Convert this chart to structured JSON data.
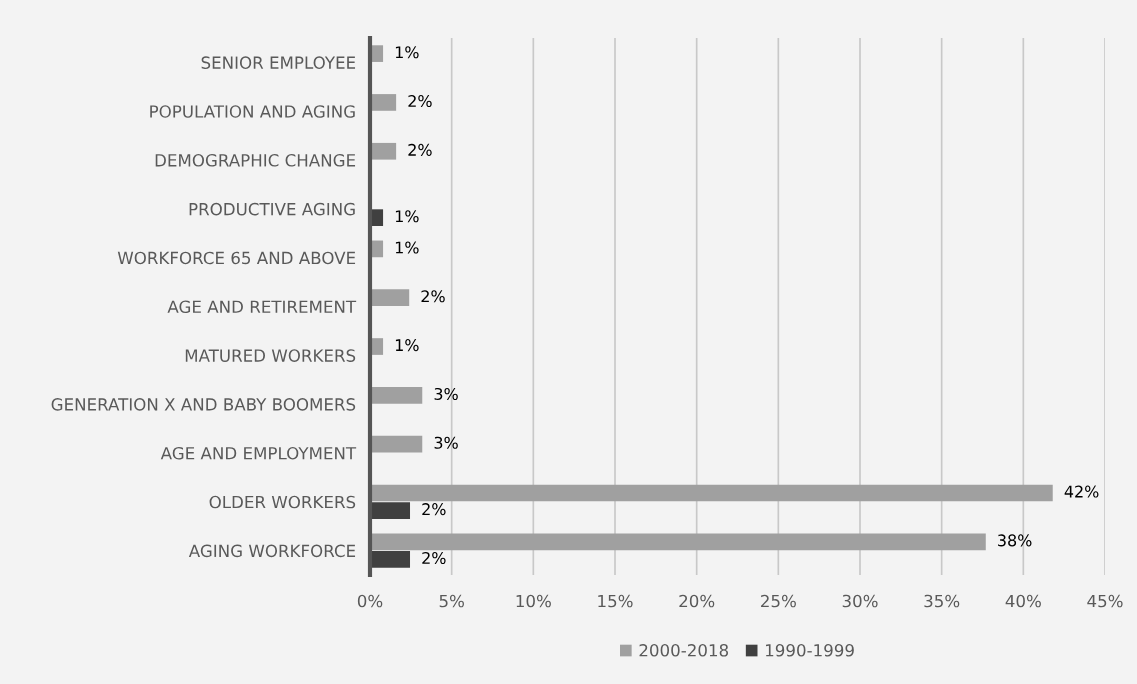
{
  "chart_data": {
    "type": "bar",
    "orientation": "horizontal",
    "categories": [
      "SENIOR EMPLOYEE",
      "POPULATION AND AGING",
      "DEMOGRAPHIC CHANGE",
      "PRODUCTIVE AGING",
      "WORKFORCE 65 AND ABOVE",
      "AGE AND RETIREMENT",
      "MATURED WORKERS",
      "GENERATION X AND BABY BOOMERS",
      "AGE AND EMPLOYMENT",
      "OLDER WORKERS",
      "AGING WORKFORCE"
    ],
    "series": [
      {
        "name": "2000-2018",
        "color": "#a0a0a0",
        "values": [
          0.8,
          1.6,
          1.6,
          null,
          0.8,
          2.4,
          0.8,
          3.2,
          3.2,
          41.8,
          37.7
        ],
        "value_labels": [
          "1%",
          "2%",
          "2%",
          null,
          "1%",
          "2%",
          "1%",
          "3%",
          "3%",
          "42%",
          "38%"
        ]
      },
      {
        "name": "1990-1999",
        "color": "#404040",
        "values": [
          null,
          null,
          null,
          0.8,
          null,
          null,
          null,
          null,
          null,
          2.45,
          2.45
        ],
        "value_labels": [
          null,
          null,
          null,
          "1%",
          null,
          null,
          null,
          null,
          null,
          "2%",
          "2%"
        ]
      }
    ],
    "xlim": [
      0,
      45
    ],
    "xticks": [
      {
        "value": 0,
        "label": "0%"
      },
      {
        "value": 5,
        "label": "5%"
      },
      {
        "value": 10,
        "label": "10%"
      },
      {
        "value": 15,
        "label": "15%"
      },
      {
        "value": 20,
        "label": "20%"
      },
      {
        "value": 25,
        "label": "25%"
      },
      {
        "value": 30,
        "label": "30%"
      },
      {
        "value": 35,
        "label": "35%"
      },
      {
        "value": 40,
        "label": "40%"
      },
      {
        "value": 45,
        "label": "45%"
      }
    ],
    "grid": "x",
    "legend": "bottom"
  }
}
